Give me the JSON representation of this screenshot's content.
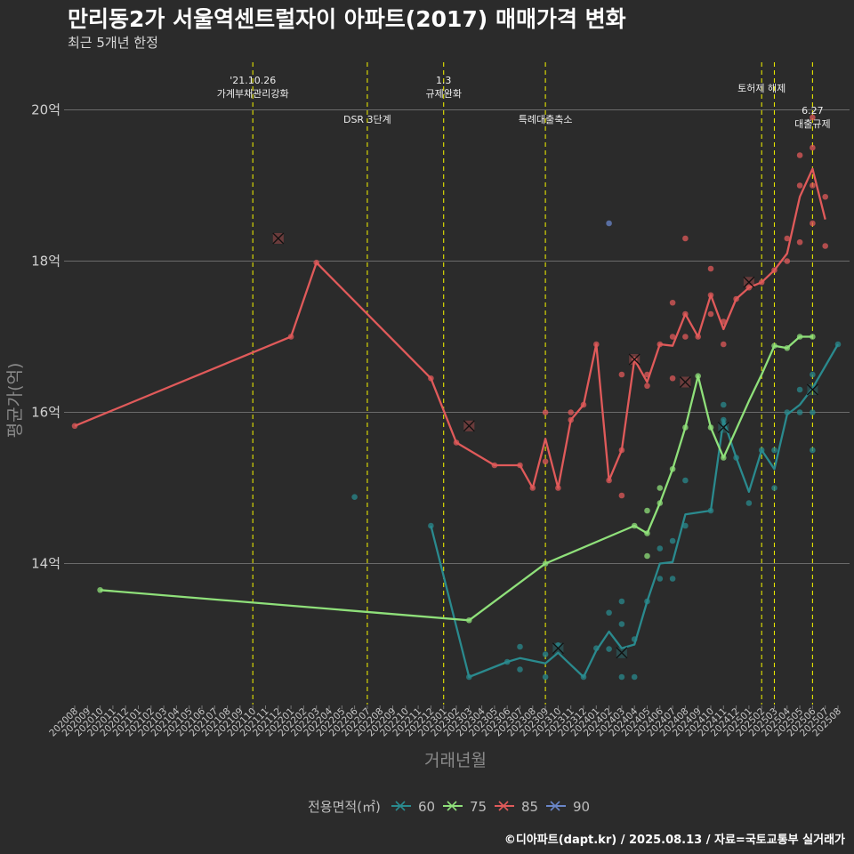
{
  "title": "만리동2가 서울역센트럴자이 아파트(2017) 매매가격 변화",
  "subtitle": "최근 5개년 한정",
  "caption": "©디아파트(dapt.kr) / 2025.08.13 / 자료=국토교통부 실거래가",
  "chart_data": {
    "type": "line",
    "xlabel": "거래년월",
    "ylabel": "평균가(억)",
    "x_ticks": [
      "202008",
      "202009",
      "202010",
      "202011",
      "202012",
      "202101",
      "202102",
      "202103",
      "202104",
      "202105",
      "202106",
      "202107",
      "202108",
      "202109",
      "202110",
      "202111",
      "202112",
      "202201",
      "202202",
      "202203",
      "202204",
      "202205",
      "202206",
      "202207",
      "202208",
      "202209",
      "202210",
      "202211",
      "202212",
      "202301",
      "202302",
      "202303",
      "202304",
      "202305",
      "202306",
      "202307",
      "202308",
      "202309",
      "202310",
      "202311",
      "202312",
      "202401",
      "202402",
      "202403",
      "202404",
      "202405",
      "202406",
      "202407",
      "202408",
      "202409",
      "202410",
      "202411",
      "202412",
      "202501",
      "202502",
      "202503",
      "202504",
      "202505",
      "202506",
      "202507",
      "202508"
    ],
    "y_ticks": [
      14,
      16,
      18,
      20
    ],
    "y_tick_labels": [
      "14억",
      "16억",
      "18억",
      "20억"
    ],
    "ylim": [
      12.2,
      20.6
    ],
    "grid": true,
    "legend_position": "bottom",
    "legend_title": "전용면적(㎡)",
    "series": [
      {
        "name": "60",
        "color": "#2a8a8e",
        "line": [
          [
            "202212",
            14.5
          ],
          [
            "202303",
            12.5
          ],
          [
            "202306",
            12.7
          ],
          [
            "202307",
            12.75
          ],
          [
            "202309",
            12.68
          ],
          [
            "202310",
            12.82
          ],
          [
            "202312",
            12.5
          ],
          [
            "202401",
            12.85
          ],
          [
            "202402",
            13.1
          ],
          [
            "202403",
            12.88
          ],
          [
            "202404",
            12.93
          ],
          [
            "202405",
            13.5
          ],
          [
            "202406",
            14.0
          ],
          [
            "202407",
            14.02
          ],
          [
            "202408",
            14.65
          ],
          [
            "202410",
            14.7
          ],
          [
            "202411",
            15.9
          ],
          [
            "202412",
            15.4
          ],
          [
            "202501",
            14.95
          ],
          [
            "202502",
            15.5
          ],
          [
            "202503",
            15.25
          ],
          [
            "202504",
            15.97
          ],
          [
            "202505",
            16.1
          ],
          [
            "202506",
            16.32
          ],
          [
            "202508",
            16.9
          ]
        ],
        "points": [
          [
            "202206",
            14.88
          ],
          [
            "202212",
            14.5
          ],
          [
            "202303",
            12.5
          ],
          [
            "202306",
            12.7
          ],
          [
            "202307",
            12.6
          ],
          [
            "202307",
            12.9
          ],
          [
            "202309",
            12.5
          ],
          [
            "202309",
            12.8
          ],
          [
            "202310",
            12.92
          ],
          [
            "202312",
            12.5
          ],
          [
            "202401",
            12.88
          ],
          [
            "202402",
            12.87
          ],
          [
            "202402",
            13.35
          ],
          [
            "202403",
            12.5
          ],
          [
            "202403",
            13.2
          ],
          [
            "202403",
            13.5
          ],
          [
            "202404",
            12.5
          ],
          [
            "202404",
            13.0
          ],
          [
            "202405",
            13.5
          ],
          [
            "202406",
            13.8
          ],
          [
            "202406",
            14.2
          ],
          [
            "202407",
            13.8
          ],
          [
            "202407",
            14.3
          ],
          [
            "202408",
            14.5
          ],
          [
            "202408",
            15.1
          ],
          [
            "202410",
            14.7
          ],
          [
            "202411",
            15.9
          ],
          [
            "202411",
            16.1
          ],
          [
            "202412",
            15.4
          ],
          [
            "202501",
            14.8
          ],
          [
            "202502",
            15.5
          ],
          [
            "202503",
            15.0
          ],
          [
            "202503",
            15.5
          ],
          [
            "202504",
            16.0
          ],
          [
            "202505",
            16.0
          ],
          [
            "202505",
            16.3
          ],
          [
            "202506",
            15.5
          ],
          [
            "202506",
            16.0
          ],
          [
            "202506",
            16.5
          ],
          [
            "202508",
            16.9
          ]
        ],
        "cancelled": [
          [
            "202310",
            12.88
          ],
          [
            "202403",
            12.82
          ],
          [
            "202411",
            15.8
          ],
          [
            "202506",
            16.3
          ]
        ]
      },
      {
        "name": "75",
        "color": "#8fe07a",
        "line": [
          [
            "202010",
            13.65
          ],
          [
            "202303",
            13.25
          ],
          [
            "202309",
            14.0
          ],
          [
            "202404",
            14.5
          ],
          [
            "202405",
            14.4
          ],
          [
            "202406",
            14.8
          ],
          [
            "202407",
            15.25
          ],
          [
            "202408",
            15.8
          ],
          [
            "202409",
            16.48
          ],
          [
            "202410",
            15.8
          ],
          [
            "202411",
            15.4
          ],
          [
            "202501",
            16.15
          ],
          [
            "202502",
            16.5
          ],
          [
            "202503",
            16.88
          ],
          [
            "202504",
            16.85
          ],
          [
            "202505",
            17.0
          ],
          [
            "202506",
            17.0
          ]
        ],
        "points": [
          [
            "202010",
            13.65
          ],
          [
            "202303",
            13.25
          ],
          [
            "202309",
            14.0
          ],
          [
            "202404",
            14.5
          ],
          [
            "202405",
            14.1
          ],
          [
            "202405",
            14.4
          ],
          [
            "202405",
            14.7
          ],
          [
            "202406",
            14.8
          ],
          [
            "202406",
            15.0
          ],
          [
            "202407",
            15.25
          ],
          [
            "202408",
            15.8
          ],
          [
            "202409",
            16.48
          ],
          [
            "202410",
            15.8
          ],
          [
            "202411",
            15.4
          ],
          [
            "202503",
            16.88
          ],
          [
            "202504",
            16.85
          ],
          [
            "202505",
            17.0
          ],
          [
            "202506",
            17.0
          ]
        ],
        "cancelled": []
      },
      {
        "name": "85",
        "color": "#e05a5a",
        "line": [
          [
            "202008",
            15.82
          ],
          [
            "202201",
            17.0
          ],
          [
            "202203",
            17.98
          ],
          [
            "202212",
            16.45
          ],
          [
            "202302",
            15.6
          ],
          [
            "202305",
            15.3
          ],
          [
            "202307",
            15.3
          ],
          [
            "202308",
            15.0
          ],
          [
            "202309",
            15.65
          ],
          [
            "202310",
            15.0
          ],
          [
            "202311",
            15.9
          ],
          [
            "202312",
            16.1
          ],
          [
            "202401",
            16.9
          ],
          [
            "202402",
            15.1
          ],
          [
            "202403",
            15.5
          ],
          [
            "202404",
            16.7
          ],
          [
            "202405",
            16.4
          ],
          [
            "202406",
            16.9
          ],
          [
            "202407",
            16.88
          ],
          [
            "202408",
            17.3
          ],
          [
            "202409",
            17.0
          ],
          [
            "202410",
            17.55
          ],
          [
            "202411",
            17.1
          ],
          [
            "202412",
            17.5
          ],
          [
            "202501",
            17.65
          ],
          [
            "202502",
            17.72
          ],
          [
            "202503",
            17.88
          ],
          [
            "202504",
            18.1
          ],
          [
            "202505",
            18.85
          ],
          [
            "202506",
            19.22
          ],
          [
            "202507",
            18.55
          ]
        ],
        "points": [
          [
            "202008",
            15.82
          ],
          [
            "202201",
            17.0
          ],
          [
            "202203",
            17.98
          ],
          [
            "202212",
            16.45
          ],
          [
            "202302",
            15.6
          ],
          [
            "202305",
            15.3
          ],
          [
            "202307",
            15.3
          ],
          [
            "202308",
            15.0
          ],
          [
            "202309",
            15.35
          ],
          [
            "202309",
            16.0
          ],
          [
            "202310",
            15.0
          ],
          [
            "202311",
            15.9
          ],
          [
            "202311",
            16.0
          ],
          [
            "202312",
            16.1
          ],
          [
            "202401",
            16.9
          ],
          [
            "202402",
            15.1
          ],
          [
            "202403",
            14.9
          ],
          [
            "202403",
            15.5
          ],
          [
            "202403",
            16.5
          ],
          [
            "202404",
            16.7
          ],
          [
            "202405",
            16.35
          ],
          [
            "202405",
            16.5
          ],
          [
            "202406",
            16.9
          ],
          [
            "202407",
            16.45
          ],
          [
            "202407",
            17.0
          ],
          [
            "202407",
            17.45
          ],
          [
            "202408",
            17.0
          ],
          [
            "202408",
            17.3
          ],
          [
            "202408",
            18.3
          ],
          [
            "202409",
            17.0
          ],
          [
            "202410",
            17.3
          ],
          [
            "202410",
            17.55
          ],
          [
            "202410",
            17.9
          ],
          [
            "202411",
            16.9
          ],
          [
            "202411",
            17.2
          ],
          [
            "202412",
            17.5
          ],
          [
            "202501",
            17.65
          ],
          [
            "202502",
            17.72
          ],
          [
            "202503",
            17.88
          ],
          [
            "202504",
            18.0
          ],
          [
            "202504",
            18.3
          ],
          [
            "202505",
            18.25
          ],
          [
            "202505",
            19.0
          ],
          [
            "202505",
            19.4
          ],
          [
            "202506",
            18.5
          ],
          [
            "202506",
            19.0
          ],
          [
            "202506",
            19.5
          ],
          [
            "202506",
            19.9
          ],
          [
            "202507",
            18.2
          ],
          [
            "202507",
            18.85
          ]
        ],
        "cancelled": [
          [
            "202112",
            18.3
          ],
          [
            "202303",
            15.82
          ],
          [
            "202404",
            16.7
          ],
          [
            "202408",
            16.4
          ],
          [
            "202501",
            17.72
          ]
        ]
      },
      {
        "name": "90",
        "color": "#6a86c9",
        "line": [],
        "points": [
          [
            "202402",
            18.5
          ]
        ],
        "cancelled": []
      }
    ],
    "events": [
      {
        "month": "202110",
        "text": [
          "'21.10.26",
          "가계부채관리강화"
        ],
        "row": "top"
      },
      {
        "month": "202207",
        "text": [
          "DSR 3단계"
        ],
        "row": "low"
      },
      {
        "month": "202301",
        "text": [
          "1.3",
          "규제완화"
        ],
        "row": "top"
      },
      {
        "month": "202309",
        "text": [
          "특례대출축소"
        ],
        "row": "low"
      },
      {
        "month": "202502",
        "text": [
          "토허제 해제"
        ],
        "row": "mid"
      },
      {
        "month": "202503",
        "text": [],
        "row": "none"
      },
      {
        "month": "202506",
        "text": [
          "6.27",
          "대출규제"
        ],
        "row": "low"
      }
    ]
  }
}
